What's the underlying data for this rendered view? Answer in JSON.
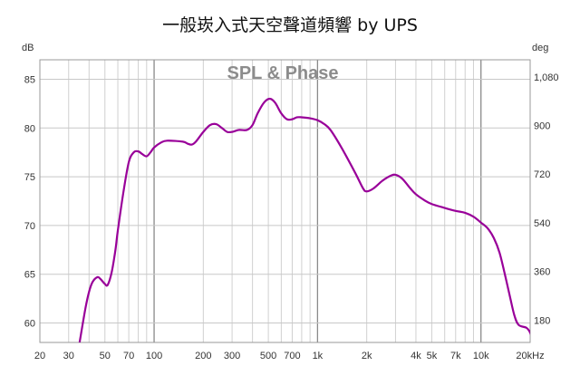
{
  "chart_data": {
    "type": "line",
    "title": "一般崁入式天空聲道頻響 by UPS",
    "subtitle": "SPL & Phase",
    "y_left_unit": "dB",
    "y_right_unit": "deg",
    "x_scale": "log",
    "xlim": [
      20,
      20000
    ],
    "ylim": [
      58,
      87
    ],
    "y_right_lim": [
      97.2,
      1143.0
    ],
    "x_ticks": [
      {
        "v": 20,
        "label": "20"
      },
      {
        "v": 30,
        "label": "30"
      },
      {
        "v": 50,
        "label": "50"
      },
      {
        "v": 70,
        "label": "70"
      },
      {
        "v": 100,
        "label": "100"
      },
      {
        "v": 200,
        "label": "200"
      },
      {
        "v": 300,
        "label": "300"
      },
      {
        "v": 500,
        "label": "500"
      },
      {
        "v": 700,
        "label": "700"
      },
      {
        "v": 1000,
        "label": "1k"
      },
      {
        "v": 2000,
        "label": "2k"
      },
      {
        "v": 4000,
        "label": "4k"
      },
      {
        "v": 5000,
        "label": "5k"
      },
      {
        "v": 7000,
        "label": "7k"
      },
      {
        "v": 10000,
        "label": "10k"
      },
      {
        "v": 20000,
        "label": "20kHz"
      }
    ],
    "y_left_ticks": [
      {
        "v": 60,
        "label": "60"
      },
      {
        "v": 65,
        "label": "65"
      },
      {
        "v": 70,
        "label": "70"
      },
      {
        "v": 75,
        "label": "75"
      },
      {
        "v": 80,
        "label": "80"
      },
      {
        "v": 85,
        "label": "85"
      }
    ],
    "y_right_ticks": [
      {
        "v": 180,
        "label": "180"
      },
      {
        "v": 360,
        "label": "360"
      },
      {
        "v": 540,
        "label": "540"
      },
      {
        "v": 720,
        "label": "720"
      },
      {
        "v": 900,
        "label": "900"
      },
      {
        "v": 1080,
        "label": "1,080"
      }
    ],
    "grid": true,
    "series": [
      {
        "color": "#990099",
        "points": [
          [
            35,
            58.0
          ],
          [
            38,
            61.5
          ],
          [
            40,
            63.2
          ],
          [
            42,
            64.2
          ],
          [
            45,
            64.7
          ],
          [
            47,
            64.5
          ],
          [
            50,
            64.0
          ],
          [
            52,
            63.9
          ],
          [
            55,
            65.2
          ],
          [
            58,
            67.5
          ],
          [
            60,
            69.5
          ],
          [
            65,
            73.5
          ],
          [
            70,
            76.5
          ],
          [
            75,
            77.5
          ],
          [
            80,
            77.6
          ],
          [
            85,
            77.3
          ],
          [
            90,
            77.1
          ],
          [
            95,
            77.5
          ],
          [
            100,
            78.0
          ],
          [
            110,
            78.5
          ],
          [
            120,
            78.7
          ],
          [
            150,
            78.6
          ],
          [
            160,
            78.4
          ],
          [
            170,
            78.3
          ],
          [
            180,
            78.6
          ],
          [
            200,
            79.6
          ],
          [
            220,
            80.3
          ],
          [
            240,
            80.4
          ],
          [
            260,
            80.0
          ],
          [
            280,
            79.6
          ],
          [
            300,
            79.6
          ],
          [
            330,
            79.8
          ],
          [
            370,
            79.8
          ],
          [
            400,
            80.3
          ],
          [
            430,
            81.5
          ],
          [
            470,
            82.6
          ],
          [
            510,
            83.0
          ],
          [
            550,
            82.6
          ],
          [
            600,
            81.5
          ],
          [
            650,
            80.9
          ],
          [
            700,
            80.9
          ],
          [
            750,
            81.1
          ],
          [
            800,
            81.1
          ],
          [
            900,
            81.0
          ],
          [
            1000,
            80.8
          ],
          [
            1100,
            80.4
          ],
          [
            1200,
            79.8
          ],
          [
            1400,
            78.0
          ],
          [
            1700,
            75.4
          ],
          [
            1900,
            73.8
          ],
          [
            2000,
            73.5
          ],
          [
            2200,
            73.8
          ],
          [
            2500,
            74.6
          ],
          [
            2800,
            75.1
          ],
          [
            3000,
            75.2
          ],
          [
            3300,
            74.8
          ],
          [
            3700,
            73.8
          ],
          [
            4000,
            73.2
          ],
          [
            4500,
            72.6
          ],
          [
            5000,
            72.2
          ],
          [
            6000,
            71.8
          ],
          [
            7000,
            71.5
          ],
          [
            8000,
            71.3
          ],
          [
            9000,
            70.9
          ],
          [
            10000,
            70.3
          ],
          [
            11000,
            69.7
          ],
          [
            12000,
            68.7
          ],
          [
            13000,
            67.2
          ],
          [
            14000,
            65.0
          ],
          [
            15000,
            62.8
          ],
          [
            16000,
            60.8
          ],
          [
            17000,
            59.8
          ],
          [
            19000,
            59.5
          ],
          [
            20000,
            59.0
          ],
          [
            21000,
            58.0
          ]
        ]
      }
    ]
  }
}
